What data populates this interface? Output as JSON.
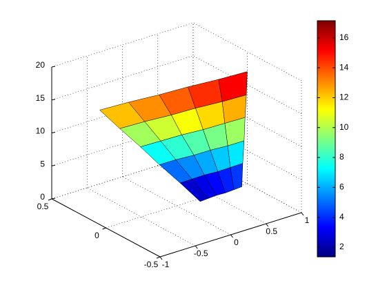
{
  "chart_data": {
    "type": "surface",
    "colormap": "jet",
    "edge_color": "#000000",
    "grid": true,
    "x": [
      [
        0.15,
        0.23,
        0.32,
        0.4,
        0.49,
        0.57
      ],
      [
        0.02,
        0.14,
        0.27,
        0.4,
        0.53,
        0.66
      ],
      [
        -0.12,
        0.05,
        0.23,
        0.4,
        0.57,
        0.74
      ],
      [
        -0.25,
        -0.04,
        0.18,
        0.39,
        0.62,
        0.83
      ],
      [
        -0.39,
        -0.13,
        0.14,
        0.39,
        0.66,
        0.91
      ],
      [
        -0.52,
        -0.22,
        0.09,
        0.39,
        0.7,
        1.0
      ]
    ],
    "y": [
      [
        -0.12,
        -0.14,
        -0.16,
        -0.19,
        -0.21,
        -0.23
      ],
      [
        -0.02,
        -0.05,
        -0.08,
        -0.12,
        -0.15,
        -0.18
      ],
      [
        0.08,
        0.04,
        -0.01,
        -0.05,
        -0.1,
        -0.14
      ],
      [
        0.17,
        0.12,
        0.07,
        0.01,
        -0.04,
        -0.09
      ],
      [
        0.27,
        0.21,
        0.14,
        0.08,
        0.01,
        -0.05
      ],
      [
        0.37,
        0.3,
        0.22,
        0.15,
        0.07,
        0.0
      ]
    ],
    "z": [
      [
        1.2,
        1.56,
        1.92,
        2.28,
        2.64,
        3.0
      ],
      [
        3.56,
        4.01,
        4.46,
        4.9,
        5.35,
        5.8
      ],
      [
        5.92,
        6.46,
        6.99,
        7.53,
        8.06,
        8.6
      ],
      [
        8.28,
        8.9,
        9.53,
        10.15,
        10.78,
        11.4
      ],
      [
        10.64,
        11.35,
        12.06,
        12.78,
        13.49,
        14.2
      ],
      [
        13.0,
        13.8,
        14.6,
        15.4,
        16.2,
        17.0
      ]
    ],
    "xlim": [
      -1,
      1
    ],
    "ylim": [
      -0.5,
      0.5
    ],
    "zlim": [
      0,
      20
    ],
    "xticks": [
      -1,
      -0.5,
      0,
      0.5,
      1
    ],
    "yticks": [
      -0.5,
      0,
      0.5
    ],
    "zticks": [
      0,
      5,
      10,
      15,
      20
    ],
    "clim": [
      1.35,
      17.15
    ],
    "colorbar_ticks": [
      2,
      4,
      6,
      8,
      10,
      12,
      14,
      16
    ]
  }
}
